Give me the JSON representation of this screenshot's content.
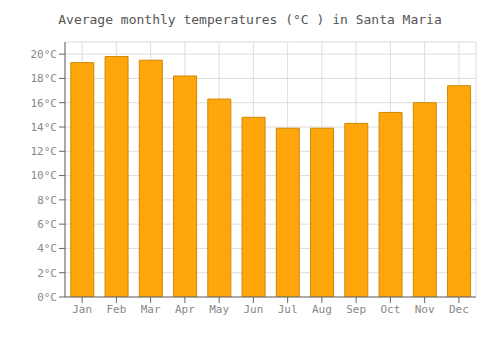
{
  "chart_data": {
    "type": "bar",
    "title": "Average monthly temperatures (°C ) in Santa Maria",
    "categories": [
      "Jan",
      "Feb",
      "Mar",
      "Apr",
      "May",
      "Jun",
      "Jul",
      "Aug",
      "Sep",
      "Oct",
      "Nov",
      "Dec"
    ],
    "values": [
      19.3,
      19.8,
      19.5,
      18.2,
      16.3,
      14.8,
      13.9,
      13.9,
      14.3,
      15.2,
      16.0,
      17.4
    ],
    "color": "#FFA60D",
    "ylim": [
      0,
      21
    ],
    "yticks": [
      {
        "value": 0,
        "label": "0°C"
      },
      {
        "value": 2,
        "label": "2°C"
      },
      {
        "value": 4,
        "label": "4°C"
      },
      {
        "value": 6,
        "label": "6°C"
      },
      {
        "value": 8,
        "label": "8°C"
      },
      {
        "value": 10,
        "label": "10°C"
      },
      {
        "value": 12,
        "label": "12°C"
      },
      {
        "value": 14,
        "label": "14°C"
      },
      {
        "value": 16,
        "label": "16°C"
      },
      {
        "value": 18,
        "label": "18°C"
      },
      {
        "value": 20,
        "label": "20°C"
      }
    ],
    "grid": true
  }
}
